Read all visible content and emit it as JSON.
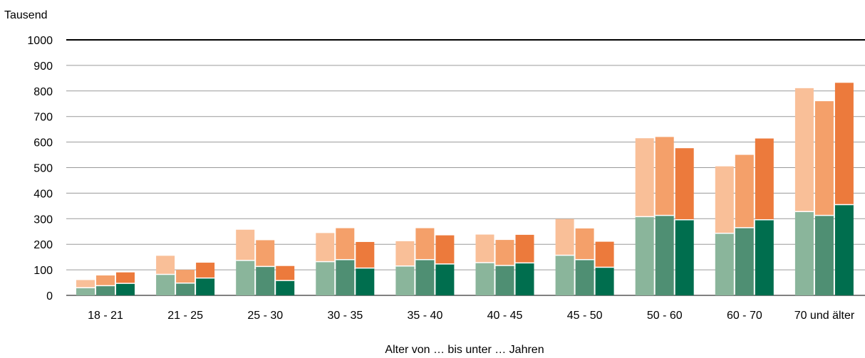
{
  "chart_data": {
    "type": "bar",
    "ylabel": "Tausend",
    "xlabel": "Alter von … bis unter … Jahren",
    "ylim": [
      0,
      1000
    ],
    "yticks": [
      0,
      100,
      200,
      300,
      400,
      500,
      600,
      700,
      800,
      900,
      1000
    ],
    "grid": true,
    "stacked": true,
    "bars_per_category": 3,
    "categories": [
      "18 - 21",
      "21 - 25",
      "25 - 30",
      "30 - 35",
      "35 - 40",
      "40 - 45",
      "45 - 50",
      "50 - 60",
      "60 - 70",
      "70 und älter"
    ],
    "series": [
      {
        "bottom_values": [
          30,
          82,
          137,
          132,
          115,
          128,
          157,
          308,
          243,
          328
        ],
        "top_values": [
          30,
          73,
          120,
          112,
          97,
          110,
          142,
          307,
          262,
          483
        ],
        "bottom_color": "#8ab59b",
        "top_color": "#f9bf98"
      },
      {
        "bottom_values": [
          38,
          48,
          113,
          140,
          140,
          117,
          140,
          313,
          265,
          313
        ],
        "top_values": [
          40,
          52,
          103,
          123,
          123,
          100,
          122,
          307,
          285,
          447
        ],
        "bottom_color": "#4f8f73",
        "top_color": "#f4a06a"
      },
      {
        "bottom_values": [
          47,
          68,
          58,
          107,
          123,
          127,
          110,
          296,
          296,
          355
        ],
        "top_values": [
          43,
          60,
          57,
          102,
          112,
          110,
          100,
          280,
          318,
          477
        ],
        "bottom_color": "#006e4e",
        "top_color": "#ec7a3c"
      }
    ]
  }
}
